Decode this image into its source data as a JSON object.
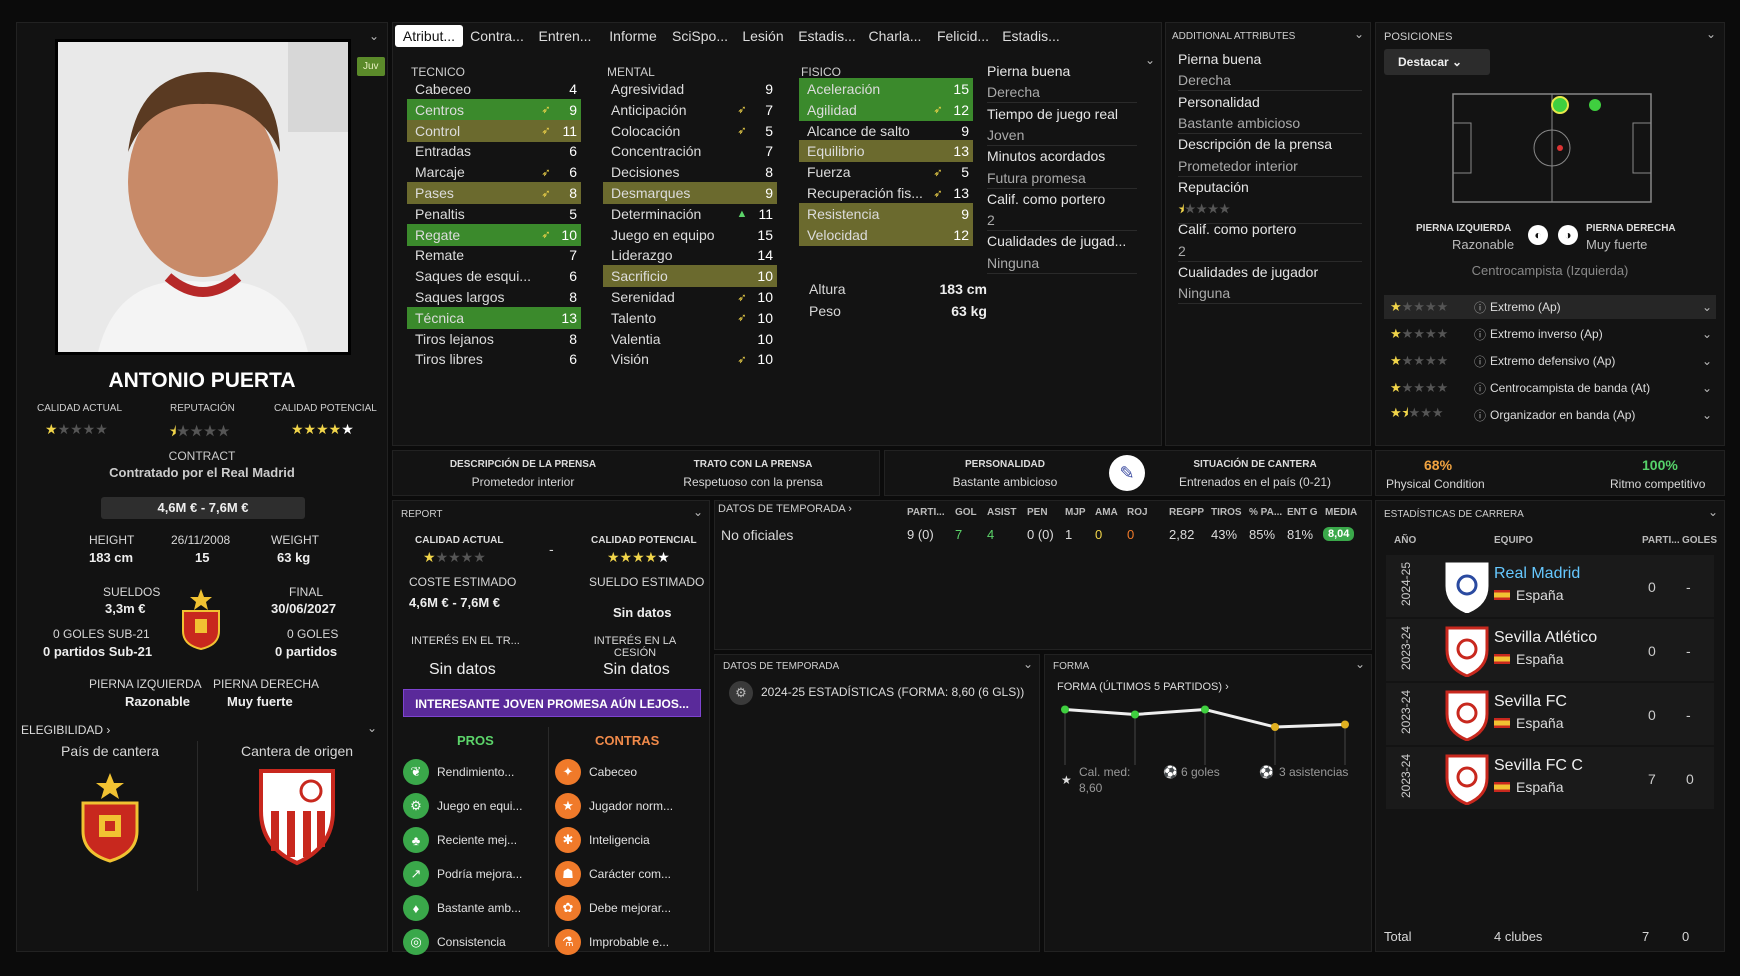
{
  "tabs": [
    "Atribut...",
    "Contra...",
    "Entren...",
    "Informe",
    "SciSpo...",
    "Lesión",
    "Estadis...",
    "Charla...",
    "Felicid...",
    "Estadis..."
  ],
  "player": {
    "name": "ANTONIO PUERTA",
    "badge": "Juv",
    "labels": {
      "ca": "CALIDAD ACTUAL",
      "rep": "REPUTACIÓN",
      "cp": "CALIDAD POTENCIAL",
      "contract": "CONTRACT",
      "height": "HEIGHT",
      "age": "26/11/2008",
      "weight": "WEIGHT",
      "wages": "SUELDOS",
      "final": "FINAL",
      "left": "PIERNA IZQUIERDA",
      "right": "PIERNA DERECHA"
    },
    "contract": "Contratado por el Real Madrid",
    "value": "4,6M € - 7,6M €",
    "height": "183 cm",
    "age": "15",
    "weight": "63 kg",
    "wages": "3,3m €",
    "final": "30/06/2027",
    "goals_u21": "0 GOLES SUB-21",
    "apps_u21": "0 partidos Sub-21",
    "goals": "0 GOLES",
    "apps": "0 partidos",
    "left_foot": "Razonable",
    "right_foot": "Muy fuerte",
    "elig": "ELEGIBILIDAD",
    "youth_country": "País de cantera",
    "youth_club": "Cantera de origen"
  },
  "attributes": {
    "tec_h": "TECNICO",
    "men_h": "MENTAL",
    "fis_h": "FISICO",
    "tecnico": [
      {
        "n": "Cabeceo",
        "v": "4",
        "a": "",
        "h": ""
      },
      {
        "n": "Centros",
        "v": "9",
        "a": "➶",
        "h": "g"
      },
      {
        "n": "Control",
        "v": "11",
        "a": "➶",
        "h": "o"
      },
      {
        "n": "Entradas",
        "v": "6",
        "a": "",
        "h": ""
      },
      {
        "n": "Marcaje",
        "v": "6",
        "a": "➶",
        "h": ""
      },
      {
        "n": "Pases",
        "v": "8",
        "a": "➶",
        "h": "o"
      },
      {
        "n": "Penaltis",
        "v": "5",
        "a": "",
        "h": ""
      },
      {
        "n": "Regate",
        "v": "10",
        "a": "➶",
        "h": "g"
      },
      {
        "n": "Remate",
        "v": "7",
        "a": "",
        "h": ""
      },
      {
        "n": "Saques de esqui...",
        "v": "6",
        "a": "",
        "h": ""
      },
      {
        "n": "Saques largos",
        "v": "8",
        "a": "",
        "h": ""
      },
      {
        "n": "Técnica",
        "v": "13",
        "a": "",
        "h": "g"
      },
      {
        "n": "Tiros lejanos",
        "v": "8",
        "a": "",
        "h": ""
      },
      {
        "n": "Tiros libres",
        "v": "6",
        "a": "",
        "h": ""
      }
    ],
    "mental": [
      {
        "n": "Agresividad",
        "v": "9",
        "a": "",
        "h": ""
      },
      {
        "n": "Anticipación",
        "v": "7",
        "a": "➶",
        "h": ""
      },
      {
        "n": "Colocación",
        "v": "5",
        "a": "➶",
        "h": ""
      },
      {
        "n": "Concentración",
        "v": "7",
        "a": "",
        "h": ""
      },
      {
        "n": "Decisiones",
        "v": "8",
        "a": "",
        "h": ""
      },
      {
        "n": "Desmarques",
        "v": "9",
        "a": "",
        "h": "o"
      },
      {
        "n": "Determinación",
        "v": "11",
        "a": "▲",
        "h": ""
      },
      {
        "n": "Juego en equipo",
        "v": "15",
        "a": "",
        "h": ""
      },
      {
        "n": "Liderazgo",
        "v": "14",
        "a": "",
        "h": ""
      },
      {
        "n": "Sacrificio",
        "v": "10",
        "a": "",
        "h": "o"
      },
      {
        "n": "Serenidad",
        "v": "10",
        "a": "➶",
        "h": ""
      },
      {
        "n": "Talento",
        "v": "10",
        "a": "➶",
        "h": ""
      },
      {
        "n": "Valentia",
        "v": "10",
        "a": "",
        "h": ""
      },
      {
        "n": "Visión",
        "v": "10",
        "a": "➶",
        "h": ""
      }
    ],
    "fisico": [
      {
        "n": "Aceleración",
        "v": "15",
        "a": "",
        "h": "g"
      },
      {
        "n": "Agilidad",
        "v": "12",
        "a": "➶",
        "h": "g"
      },
      {
        "n": "Alcance de salto",
        "v": "9",
        "a": "",
        "h": ""
      },
      {
        "n": "Equilibrio",
        "v": "13",
        "a": "",
        "h": "o"
      },
      {
        "n": "Fuerza",
        "v": "5",
        "a": "➶",
        "h": ""
      },
      {
        "n": "Recuperación fis...",
        "v": "13",
        "a": "➶",
        "h": ""
      },
      {
        "n": "Resistencia",
        "v": "9",
        "a": "",
        "h": "o"
      },
      {
        "n": "Velocidad",
        "v": "12",
        "a": "",
        "h": "o"
      }
    ],
    "altura_l": "Altura",
    "altura": "183 cm",
    "peso_l": "Peso",
    "peso": "63 kg",
    "side": [
      "Pierna buena",
      "Derecha",
      "Tiempo de juego real",
      "Joven",
      "Minutos acordados",
      "Futura promesa",
      "Calif. como portero",
      "2",
      "Cualidades de jugad...",
      "Ninguna"
    ]
  },
  "additional": {
    "title": "ADDITIONAL ATTRIBUTES",
    "items": [
      "Pierna buena",
      "Derecha",
      "Personalidad",
      "Bastante ambicioso",
      "Descripción de la prensa",
      "Prometedor interior",
      "Reputación",
      "",
      "Calif. como portero",
      "2",
      "Cualidades de jugador",
      "Ninguna"
    ]
  },
  "positions": {
    "title": "POSICIONES",
    "btn": "Destacar",
    "left_l": "PIERNA IZQUIERDA",
    "left": "Razonable",
    "right_l": "PIERNA DERECHA",
    "right": "Muy fuerte",
    "role": "Centrocampista (Izquierda)",
    "roles": [
      {
        "n": "Extremo (Ap)",
        "s": 1
      },
      {
        "n": "Extremo inverso (Ap)",
        "s": 1
      },
      {
        "n": "Extremo defensivo (Ap)",
        "s": 1
      },
      {
        "n": "Centrocampista de banda (At)",
        "s": 1
      },
      {
        "n": "Organizador en banda (Ap)",
        "s": 1.5
      }
    ]
  },
  "strip": {
    "press_l": "DESCRIPCIÓN DE LA PRENSA",
    "press": "Prometedor interior",
    "trato_l": "TRATO CON LA PRENSA",
    "trato": "Respetuoso con la prensa",
    "pers_l": "PERSONALIDAD",
    "pers": "Bastante ambicioso",
    "cant_l": "SITUACIÓN DE CANTERA",
    "cant": "Entrenados en el país (0-21)",
    "cond": "68%",
    "cond_l": "Physical Condition",
    "ritmo": "100%",
    "ritmo_l": "Ritmo competitivo"
  },
  "report": {
    "title": "REPORT",
    "ca": "CALIDAD ACTUAL",
    "cp": "CALIDAD POTENCIAL",
    "dash": "-",
    "coste_l": "COSTE ESTIMADO",
    "coste": "4,6M € - 7,6M €",
    "sueldo_l": "SUELDO ESTIMADO",
    "sueldo": "Sin datos",
    "int_tr_l": "INTERÉS EN EL TR...",
    "int_tr": "Sin datos",
    "int_ces_l": "INTERÉS EN LA CESIÓN",
    "int_ces": "Sin datos",
    "banner": "INTERESANTE JOVEN PROMESA AÚN LEJOS...",
    "pros_l": "PROS",
    "contras_l": "CONTRAS",
    "pros": [
      "Rendimiento...",
      "Juego en equi...",
      "Reciente mej...",
      "Podría mejora...",
      "Bastante amb...",
      "Consistencia"
    ],
    "contras": [
      "Cabeceo",
      "Jugador norm...",
      "Inteligencia",
      "Carácter com...",
      "Debe mejorar...",
      "Improbable e..."
    ]
  },
  "season": {
    "title": "DATOS DE TEMPORADA",
    "cols": [
      "PARTI...",
      "GOL",
      "ASIST",
      "PEN",
      "MJP",
      "AMA",
      "ROJ",
      "REGPP",
      "TIROS",
      "% PA...",
      "ENT G",
      "MEDIA"
    ],
    "row_l": "No oficiales",
    "row": [
      "9 (0)",
      "7",
      "4",
      "0 (0)",
      "1",
      "0",
      "0",
      "2,82",
      "43%",
      "85%",
      "81%",
      "8,04"
    ]
  },
  "season2": {
    "title": "DATOS DE TEMPORADA",
    "line": "2024-25 ESTADÍSTICAS (FORMA: 8,60 (6 GLS))"
  },
  "form": {
    "title": "FORMA",
    "sub": "FORMA (ÚLTIMOS 5 PARTIDOS)",
    "avg_l": "Cal. med:",
    "avg": "8,60",
    "goals": "6 goles",
    "assists": "3 asistencias",
    "points": [
      8.9,
      8.7,
      8.9,
      8.2,
      8.3
    ]
  },
  "career": {
    "title": "ESTADÍSTICAS DE CARRERA",
    "h_year": "AÑO",
    "h_team": "EQUIPO",
    "h_apps": "PARTI...",
    "h_goals": "GOLES",
    "rows": [
      {
        "y": "2024-25",
        "t": "Real Madrid",
        "c": "España",
        "a": "0",
        "g": "-"
      },
      {
        "y": "2023-24",
        "t": "Sevilla Atlético",
        "c": "España",
        "a": "0",
        "g": "-"
      },
      {
        "y": "2023-24",
        "t": "Sevilla FC",
        "c": "España",
        "a": "0",
        "g": "-"
      },
      {
        "y": "2023-24",
        "t": "Sevilla FC C",
        "c": "España",
        "a": "7",
        "g": "0"
      }
    ],
    "total_l": "Total",
    "total_c": "4 clubes",
    "total_a": "7",
    "total_g": "0"
  }
}
